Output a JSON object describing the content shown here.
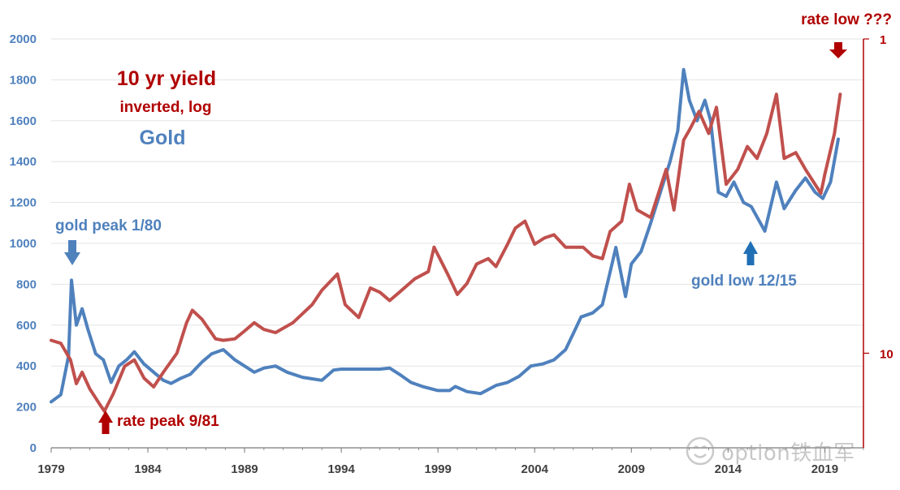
{
  "colors": {
    "gold": "#4f81bd",
    "yield": "#c0504d",
    "annotation_red": "#b00000",
    "arrow_blue": "#1f6fb5",
    "grid": "#e3e3e3",
    "axis": "#7a7a7a"
  },
  "watermark": {
    "text": "option铁血军",
    "icon": "chat-bubble-icon"
  },
  "chart_data": {
    "type": "line",
    "title": "10 yr yield",
    "annotations": {
      "title_line2": "inverted, log",
      "title_line3": "Gold",
      "gold_peak": "gold peak 1/80",
      "rate_peak": "rate peak 9/81",
      "gold_low": "gold low 12/15",
      "rate_low": "rate low ???"
    },
    "x_axis": {
      "range": [
        1979,
        2021
      ],
      "tick_labels": [
        "1979",
        "1984",
        "1989",
        "1994",
        "1999",
        "2004",
        "2009",
        "2014",
        "2019"
      ],
      "tick_values": [
        1979,
        1984,
        1989,
        1994,
        1999,
        2004,
        2009,
        2014,
        2019
      ]
    },
    "y_left": {
      "range": [
        0,
        2000
      ],
      "tick_labels": [
        "0",
        "200",
        "400",
        "600",
        "800",
        "1000",
        "1200",
        "1400",
        "1600",
        "1800",
        "2000"
      ],
      "tick_values": [
        0,
        200,
        400,
        600,
        800,
        1000,
        1200,
        1400,
        1600,
        1800,
        2000
      ]
    },
    "y_right": {
      "scale": "log",
      "inverted": true,
      "range": [
        1,
        20
      ],
      "tick_labels": [
        "1",
        "10"
      ],
      "tick_values": [
        1,
        10
      ]
    },
    "grid": true,
    "series": [
      {
        "name": "Gold",
        "axis": "left",
        "x": [
          1979.0,
          1979.5,
          1979.9,
          1980.05,
          1980.3,
          1980.6,
          1980.9,
          1981.3,
          1981.7,
          1982.1,
          1982.5,
          1982.9,
          1983.3,
          1983.8,
          1984.3,
          1984.8,
          1985.2,
          1985.7,
          1986.2,
          1986.8,
          1987.3,
          1987.9,
          1988.5,
          1989.0,
          1989.5,
          1990.0,
          1990.6,
          1991.2,
          1992.0,
          1993.0,
          1993.6,
          1994.0,
          1995.0,
          1996.0,
          1996.5,
          1997.0,
          1997.6,
          1998.2,
          1999.0,
          1999.6,
          1999.9,
          2000.5,
          2001.2,
          2002.0,
          2002.6,
          2003.2,
          2003.8,
          2004.4,
          2005.0,
          2005.6,
          2006.0,
          2006.4,
          2007.0,
          2007.5,
          2008.0,
          2008.2,
          2008.7,
          2009.0,
          2009.5,
          2010.0,
          2010.5,
          2011.0,
          2011.4,
          2011.7,
          2012.0,
          2012.4,
          2012.8,
          2013.1,
          2013.5,
          2013.9,
          2014.3,
          2014.8,
          2015.2,
          2015.9,
          2016.5,
          2016.9,
          2017.5,
          2018.0,
          2018.5,
          2018.9,
          2019.3,
          2019.7
        ],
        "values": [
          225,
          260,
          450,
          820,
          600,
          680,
          580,
          460,
          430,
          320,
          400,
          430,
          470,
          410,
          370,
          330,
          315,
          340,
          360,
          420,
          460,
          480,
          430,
          400,
          370,
          390,
          400,
          370,
          345,
          330,
          380,
          385,
          385,
          385,
          390,
          360,
          320,
          300,
          280,
          280,
          300,
          275,
          265,
          305,
          320,
          350,
          400,
          410,
          430,
          480,
          560,
          640,
          660,
          700,
          900,
          980,
          740,
          900,
          960,
          1100,
          1250,
          1400,
          1550,
          1850,
          1700,
          1600,
          1700,
          1600,
          1250,
          1230,
          1300,
          1200,
          1180,
          1060,
          1300,
          1170,
          1260,
          1320,
          1250,
          1220,
          1300,
          1510
        ]
      },
      {
        "name": "10 yr yield",
        "axis": "right",
        "x": [
          1979.0,
          1979.5,
          1980.0,
          1980.3,
          1980.6,
          1981.0,
          1981.5,
          1981.75,
          1982.2,
          1982.8,
          1983.3,
          1983.8,
          1984.3,
          1984.8,
          1985.5,
          1986.0,
          1986.3,
          1986.8,
          1987.5,
          1987.9,
          1988.5,
          1989.0,
          1989.5,
          1990.0,
          1990.6,
          1991.5,
          1992.5,
          1993.0,
          1993.8,
          1994.2,
          1994.9,
          1995.5,
          1996.0,
          1996.5,
          1997.0,
          1997.8,
          1998.5,
          1998.8,
          1999.5,
          2000.0,
          2000.5,
          2001.0,
          2001.6,
          2002.0,
          2002.6,
          2003.0,
          2003.5,
          2004.0,
          2004.5,
          2005.0,
          2005.6,
          2006.5,
          2007.0,
          2007.5,
          2007.9,
          2008.5,
          2008.9,
          2009.3,
          2010.0,
          2010.8,
          2011.2,
          2011.7,
          2012.0,
          2012.5,
          2013.0,
          2013.4,
          2013.9,
          2014.5,
          2015.0,
          2015.5,
          2016.0,
          2016.5,
          2016.9,
          2017.5,
          2018.0,
          2018.8,
          2019.0,
          2019.5,
          2019.8
        ],
        "values": [
          9.1,
          9.3,
          10.5,
          12.5,
          11.5,
          13.0,
          14.5,
          15.3,
          13.5,
          11.0,
          10.5,
          12.0,
          12.8,
          11.5,
          10.0,
          8.0,
          7.3,
          7.8,
          9.0,
          9.1,
          9.0,
          8.5,
          8.0,
          8.4,
          8.6,
          8.0,
          7.0,
          6.3,
          5.6,
          7.0,
          7.7,
          6.2,
          6.4,
          6.8,
          6.4,
          5.8,
          5.5,
          4.6,
          5.6,
          6.5,
          6.0,
          5.2,
          5.0,
          5.3,
          4.5,
          4.0,
          3.8,
          4.5,
          4.3,
          4.2,
          4.6,
          4.6,
          4.9,
          5.0,
          4.1,
          3.8,
          2.9,
          3.5,
          3.7,
          2.6,
          3.5,
          2.1,
          1.95,
          1.7,
          2.0,
          1.65,
          2.9,
          2.6,
          2.2,
          2.4,
          2.0,
          1.5,
          2.4,
          2.3,
          2.6,
          3.1,
          2.7,
          2.0,
          1.5
        ]
      }
    ]
  }
}
